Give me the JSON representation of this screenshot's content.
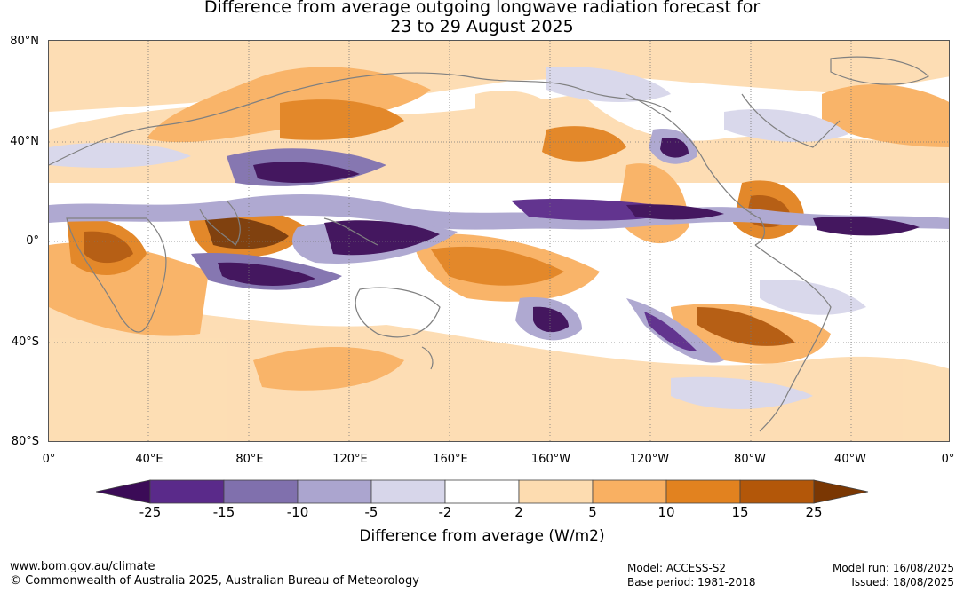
{
  "title_line1": "Difference from average outgoing longwave radiation forecast for",
  "title_line2": "23 to 29 August 2025",
  "lat_labels": [
    "80°N",
    "40°N",
    "0°",
    "40°S",
    "80°S"
  ],
  "lon_labels": [
    "0°",
    "40°E",
    "80°E",
    "120°E",
    "160°E",
    "160°W",
    "120°W",
    "80°W",
    "40°W",
    "0°"
  ],
  "colorbar": {
    "ticks": [
      "-25",
      "-15",
      "-10",
      "-5",
      "-2",
      "2",
      "5",
      "10",
      "15",
      "25"
    ],
    "colors": [
      "#3b0b57",
      "#5a2a8a",
      "#8070ad",
      "#aba5cf",
      "#d7d6ea",
      "#ffffff",
      "#fddcb0",
      "#f9b062",
      "#e2821f",
      "#b35709",
      "#7a3703"
    ],
    "label": "Difference from average (W/m2)"
  },
  "footer": {
    "website": "www.bom.gov.au/climate",
    "copyright": "© Commonwealth of Australia 2025, Australian Bureau of Meteorology",
    "model": "Model: ACCESS-S2",
    "base_period": "Base period: 1981-2018",
    "model_run": "Model run: 16/08/2025",
    "issued": "Issued: 18/08/2025"
  }
}
